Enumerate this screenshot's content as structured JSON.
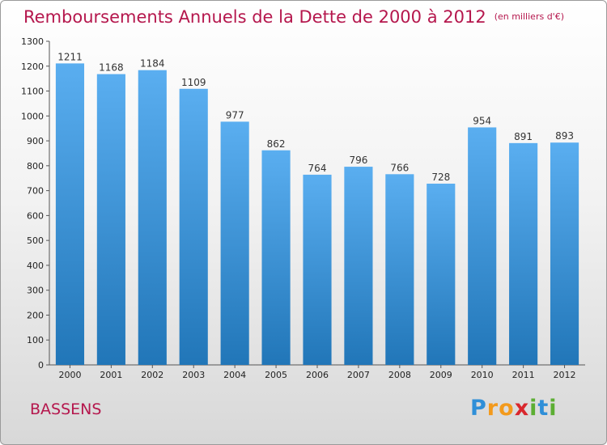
{
  "title": "Remboursements Annuels de la Dette de 2000 à 2012",
  "unit": "(en milliers d'€)",
  "city": "BASSENS",
  "logo": "Proxiti",
  "colors": {
    "bar_top": "#5aaef0",
    "bar_bottom": "#2176b8",
    "title": "#b5174d"
  },
  "chart_data": {
    "type": "bar",
    "title": "Remboursements Annuels de la Dette de 2000 à 2012",
    "categories": [
      "2000",
      "2001",
      "2002",
      "2003",
      "2004",
      "2005",
      "2006",
      "2007",
      "2008",
      "2009",
      "2010",
      "2011",
      "2012"
    ],
    "values": [
      1211,
      1168,
      1184,
      1109,
      977,
      862,
      764,
      796,
      766,
      728,
      954,
      891,
      893
    ],
    "ylim": [
      0,
      1300
    ],
    "yticks": [
      0,
      100,
      200,
      300,
      400,
      500,
      600,
      700,
      800,
      900,
      1000,
      1100,
      1200,
      1300
    ],
    "grid": false
  }
}
